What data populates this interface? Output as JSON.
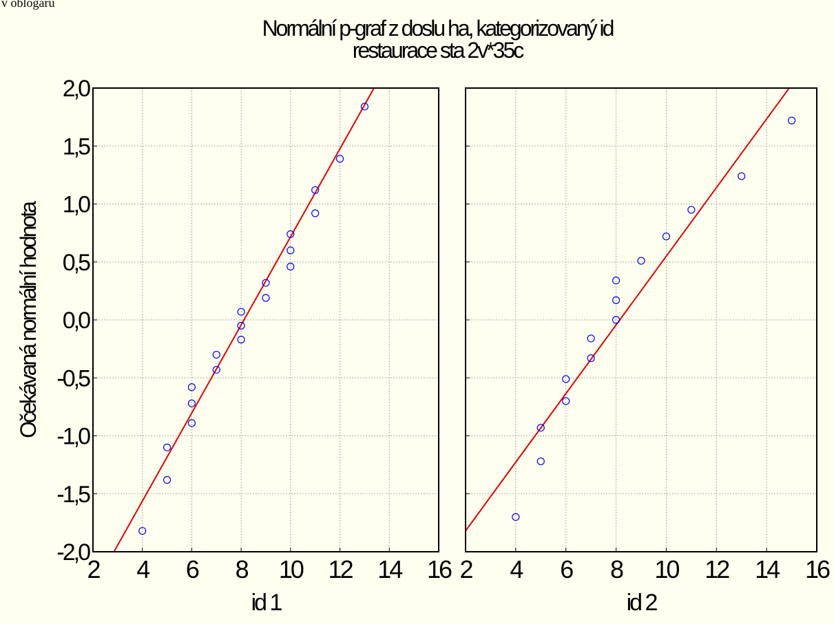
{
  "corner_text": "v oblogaru",
  "title_line1": "Normální p-graf z doslu ha, kategorizovaný id",
  "title_line2": "restaurace sta 2v*35c",
  "ylabel": "Očekávaná normální hodnota",
  "chart_data": [
    {
      "type": "scatter",
      "xlabel": "id 1",
      "xlim": [
        2,
        16
      ],
      "ylim": [
        -2.0,
        2.0
      ],
      "xticks": [
        "2",
        "4",
        "6",
        "8",
        "10",
        "12",
        "14",
        "16"
      ],
      "yticks": [
        "2,0",
        "1,5",
        "1,0",
        "0,5",
        "0,0",
        "-0,5",
        "-1,0",
        "-1,5",
        "-2,0"
      ],
      "grid": true,
      "points": [
        {
          "x": 4,
          "y": -1.82
        },
        {
          "x": 5,
          "y": -1.38
        },
        {
          "x": 5,
          "y": -1.1
        },
        {
          "x": 6,
          "y": -0.89
        },
        {
          "x": 6,
          "y": -0.72
        },
        {
          "x": 6,
          "y": -0.58
        },
        {
          "x": 7,
          "y": -0.43
        },
        {
          "x": 7,
          "y": -0.3
        },
        {
          "x": 8,
          "y": -0.17
        },
        {
          "x": 8,
          "y": -0.05
        },
        {
          "x": 8,
          "y": 0.07
        },
        {
          "x": 9,
          "y": 0.19
        },
        {
          "x": 9,
          "y": 0.32
        },
        {
          "x": 10,
          "y": 0.46
        },
        {
          "x": 10,
          "y": 0.6
        },
        {
          "x": 10,
          "y": 0.74
        },
        {
          "x": 11,
          "y": 0.92
        },
        {
          "x": 11,
          "y": 1.12
        },
        {
          "x": 12,
          "y": 1.39
        },
        {
          "x": 13,
          "y": 1.84
        }
      ],
      "fit_line": {
        "x": [
          2.85,
          13.38
        ],
        "y": [
          -2.0,
          2.0
        ]
      }
    },
    {
      "type": "scatter",
      "xlabel": "id 2",
      "xlim": [
        2,
        16
      ],
      "ylim": [
        -2.0,
        2.0
      ],
      "xticks": [
        "2",
        "4",
        "6",
        "8",
        "10",
        "12",
        "14",
        "16"
      ],
      "yticks": [
        "2,0",
        "1,5",
        "1,0",
        "0,5",
        "0,0",
        "-0,5",
        "-1,0",
        "-1,5",
        "-2,0"
      ],
      "grid": true,
      "points": [
        {
          "x": 4,
          "y": -1.7
        },
        {
          "x": 5,
          "y": -1.22
        },
        {
          "x": 5,
          "y": -0.93
        },
        {
          "x": 6,
          "y": -0.7
        },
        {
          "x": 6,
          "y": -0.51
        },
        {
          "x": 7,
          "y": -0.33
        },
        {
          "x": 7,
          "y": -0.16
        },
        {
          "x": 8,
          "y": 0.0
        },
        {
          "x": 8,
          "y": 0.17
        },
        {
          "x": 8,
          "y": 0.34
        },
        {
          "x": 9,
          "y": 0.51
        },
        {
          "x": 10,
          "y": 0.72
        },
        {
          "x": 11,
          "y": 0.95
        },
        {
          "x": 13,
          "y": 1.24
        },
        {
          "x": 15,
          "y": 1.72
        }
      ],
      "fit_line": {
        "x": [
          2.0,
          14.9
        ],
        "y": [
          -1.82,
          2.0
        ]
      }
    }
  ],
  "colors": {
    "background": "#FFFFF0",
    "point": "#0000FF",
    "fit_line": "#E00000",
    "grid": "#A8A8A8",
    "frame": "#000000"
  }
}
